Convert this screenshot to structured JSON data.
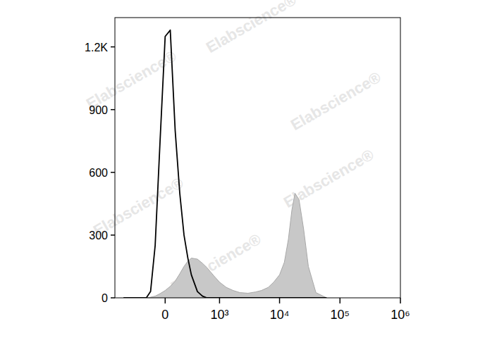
{
  "chart_data": {
    "type": "area",
    "watermark": "Elabscience®",
    "x": [
      -600,
      -400,
      -300,
      -200,
      -150,
      -100,
      -50,
      0,
      50,
      100,
      150,
      200,
      250,
      300,
      400,
      500,
      600,
      800,
      1000,
      1300,
      1700,
      2200,
      3000,
      4000,
      5000,
      6500,
      8000,
      10000,
      12000,
      14000,
      16000,
      18000,
      21000,
      25000,
      30000,
      40000,
      60000
    ],
    "series": [
      {
        "type": "line",
        "color": "#000000",
        "values": [
          0,
          0,
          0,
          0,
          30,
          250,
          750,
          1250,
          1280,
          800,
          500,
          300,
          190,
          110,
          30,
          8,
          0,
          0,
          0,
          0,
          0,
          0,
          0,
          0,
          0,
          0,
          0,
          0,
          0,
          0,
          0,
          0,
          0,
          0,
          0,
          0,
          0
        ]
      },
      {
        "type": "area",
        "color": "#c8c8c8",
        "values": [
          0,
          0,
          0,
          0,
          3,
          8,
          20,
          35,
          55,
          80,
          115,
          150,
          175,
          190,
          185,
          165,
          145,
          105,
          75,
          50,
          35,
          25,
          22,
          28,
          35,
          50,
          75,
          110,
          170,
          280,
          420,
          500,
          470,
          330,
          150,
          25,
          0
        ]
      }
    ],
    "xlim": [
      -850,
      1000000
    ],
    "xticks": [
      0,
      {
        "value": 1000,
        "label": "10³"
      },
      {
        "value": 10000,
        "label": "10⁴"
      },
      {
        "value": 100000,
        "label": "10⁵"
      },
      {
        "value": 1000000,
        "label": "10⁶"
      }
    ],
    "ylim": [
      0,
      1340
    ],
    "yticks": [
      0,
      300,
      600,
      900,
      {
        "value": 1200,
        "label": "1.2K"
      }
    ],
    "grid": false
  }
}
